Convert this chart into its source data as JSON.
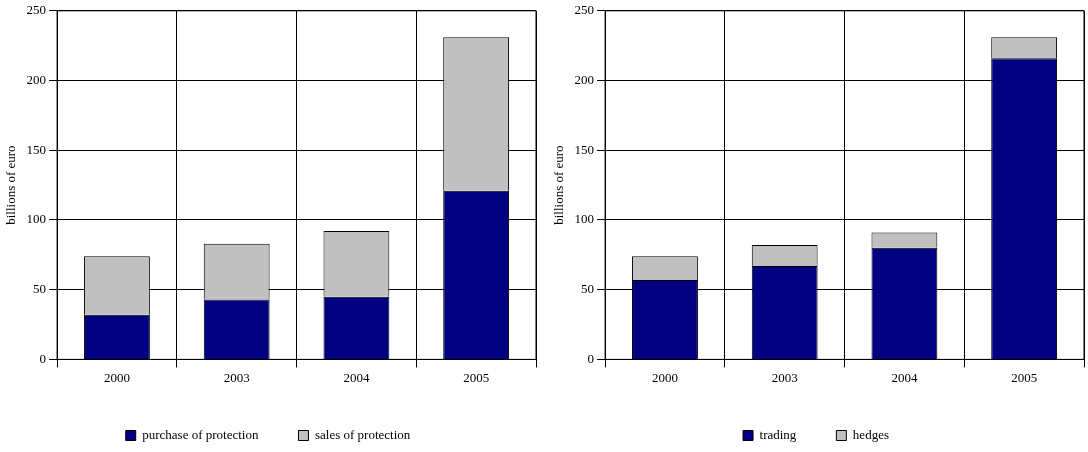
{
  "chart_data": [
    {
      "type": "bar",
      "stacked": true,
      "ylabel": "billions of euro",
      "categories": [
        "2000",
        "2003",
        "2004",
        "2005"
      ],
      "ylim": [
        0,
        250
      ],
      "yticks": [
        0,
        50,
        100,
        150,
        200,
        250
      ],
      "grid": true,
      "legend": "bottom",
      "series": [
        {
          "name": "purchase of protection",
          "color": "#000080",
          "values": [
            32,
            43,
            45,
            121
          ]
        },
        {
          "name": "sales of protection",
          "color": "#c0c0c0",
          "values": [
            42,
            40,
            47,
            110
          ]
        }
      ]
    },
    {
      "type": "bar",
      "stacked": true,
      "ylabel": "billions of euro",
      "categories": [
        "2000",
        "2003",
        "2004",
        "2005"
      ],
      "ylim": [
        0,
        250
      ],
      "yticks": [
        0,
        50,
        100,
        150,
        200,
        250
      ],
      "grid": true,
      "legend": "bottom",
      "series": [
        {
          "name": "trading",
          "color": "#000080",
          "values": [
            57,
            67,
            80,
            216
          ]
        },
        {
          "name": "hedges",
          "color": "#c0c0c0",
          "values": [
            17,
            15,
            11,
            15
          ]
        }
      ]
    }
  ]
}
